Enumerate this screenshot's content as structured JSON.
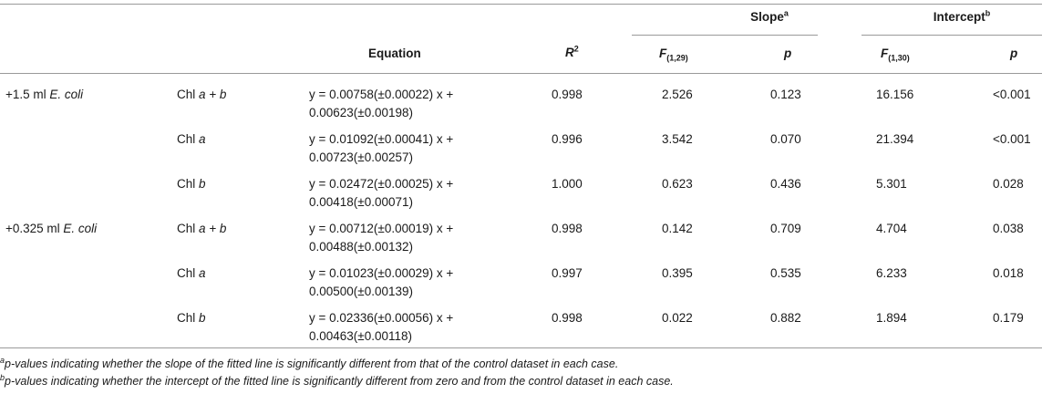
{
  "header": {
    "slope_group": "Slope",
    "slope_note": "a",
    "intercept_group": "Intercept",
    "intercept_note": "b",
    "equation": "Equation",
    "r2_base": "R",
    "r2_exp": "2",
    "f_base": "F",
    "f_slope_sub": "(1,29)",
    "f_intercept_sub": "(1,30)",
    "p": "p"
  },
  "rows": [
    {
      "group": "+1.5 ml ",
      "group_italic": "E. coli",
      "chl": "Chl ",
      "chl_italic": "a + b",
      "eq_line1": "y = 0.00758(±0.00022) x +",
      "eq_line2": "0.00623(±0.00198)",
      "r2": "0.998",
      "f_slope": "2.526",
      "p_slope": "0.123",
      "f_intercept": "16.156",
      "p_intercept": "<0.001"
    },
    {
      "group": "",
      "group_italic": "",
      "chl": "Chl ",
      "chl_italic": "a",
      "eq_line1": "y = 0.01092(±0.00041) x +",
      "eq_line2": "0.00723(±0.00257)",
      "r2": "0.996",
      "f_slope": "3.542",
      "p_slope": "0.070",
      "f_intercept": "21.394",
      "p_intercept": "<0.001"
    },
    {
      "group": "",
      "group_italic": "",
      "chl": "Chl ",
      "chl_italic": "b",
      "eq_line1": "y = 0.02472(±0.00025) x +",
      "eq_line2": "0.00418(±0.00071)",
      "r2": "1.000",
      "f_slope": "0.623",
      "p_slope": "0.436",
      "f_intercept": "5.301",
      "p_intercept": "0.028"
    },
    {
      "group": "+0.325 ml ",
      "group_italic": "E. coli",
      "chl": "Chl ",
      "chl_italic": "a + b",
      "eq_line1": "y = 0.00712(±0.00019) x +",
      "eq_line2": "0.00488(±0.00132)",
      "r2": "0.998",
      "f_slope": "0.142",
      "p_slope": "0.709",
      "f_intercept": "4.704",
      "p_intercept": "0.038"
    },
    {
      "group": "",
      "group_italic": "",
      "chl": "Chl ",
      "chl_italic": "a",
      "eq_line1": "y = 0.01023(±0.00029) x +",
      "eq_line2": "0.00500(±0.00139)",
      "r2": "0.997",
      "f_slope": "0.395",
      "p_slope": "0.535",
      "f_intercept": "6.233",
      "p_intercept": "0.018"
    },
    {
      "group": "",
      "group_italic": "",
      "chl": "Chl ",
      "chl_italic": "b",
      "eq_line1": "y = 0.02336(±0.00056) x +",
      "eq_line2": "0.00463(±0.00118)",
      "r2": "0.998",
      "f_slope": "0.022",
      "p_slope": "0.882",
      "f_intercept": "1.894",
      "p_intercept": "0.179"
    }
  ],
  "footnotes": {
    "a_mark": "a",
    "a_text": "p-values indicating whether the slope of the fitted line is significantly different from that of the control dataset in each case.",
    "b_mark": "b",
    "b_text": "p-values indicating whether the intercept of the fitted line is significantly different from zero and from the control dataset in each case."
  }
}
